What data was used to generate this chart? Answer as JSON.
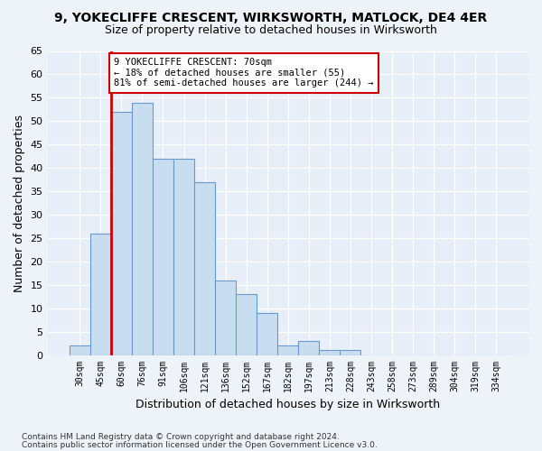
{
  "title": "9, YOKECLIFFE CRESCENT, WIRKSWORTH, MATLOCK, DE4 4ER",
  "subtitle": "Size of property relative to detached houses in Wirksworth",
  "xlabel": "Distribution of detached houses by size in Wirksworth",
  "ylabel": "Number of detached properties",
  "bar_values": [
    2,
    26,
    52,
    54,
    42,
    42,
    37,
    16,
    13,
    9,
    2,
    3,
    1,
    1,
    0,
    0,
    0,
    0,
    0,
    0,
    0
  ],
  "bar_labels": [
    "30sqm",
    "45sqm",
    "60sqm",
    "76sqm",
    "91sqm",
    "106sqm",
    "121sqm",
    "136sqm",
    "152sqm",
    "167sqm",
    "182sqm",
    "197sqm",
    "213sqm",
    "228sqm",
    "243sqm",
    "258sqm",
    "273sqm",
    "289sqm",
    "304sqm",
    "319sqm",
    "334sqm"
  ],
  "bar_color": "#c9ddf0",
  "bar_edge_color": "#6899c8",
  "vline_color": "#cc0000",
  "vline_x": 2.0,
  "annotation_text": "9 YOKECLIFFE CRESCENT: 70sqm\n← 18% of detached houses are smaller (55)\n81% of semi-detached houses are larger (244) →",
  "annotation_box_facecolor": "#ffffff",
  "annotation_box_edgecolor": "#cc0000",
  "ylim": [
    0,
    65
  ],
  "yticks": [
    0,
    5,
    10,
    15,
    20,
    25,
    30,
    35,
    40,
    45,
    50,
    55,
    60,
    65
  ],
  "footer1": "Contains HM Land Registry data © Crown copyright and database right 2024.",
  "footer2": "Contains public sector information licensed under the Open Government Licence v3.0.",
  "bg_color": "#eef2f9",
  "plot_bg_color": "#e8eef8"
}
